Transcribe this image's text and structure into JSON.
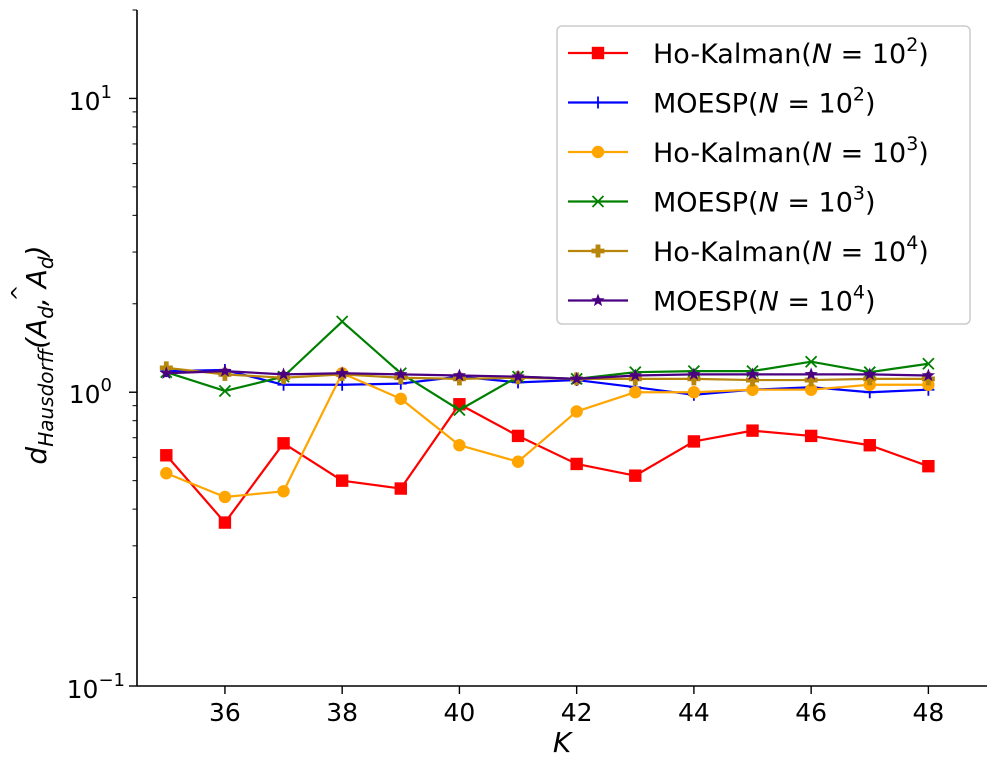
{
  "chart_data": {
    "type": "line",
    "title": "",
    "xlabel": "K",
    "ylabel": "d_Hausdorff(A_d, Â_d)",
    "ylabel_main": "d",
    "ylabel_sub": "Hausdorff",
    "ylabel_args": "(A",
    "ylabel_args_sub": "d",
    "ylabel_args2": ", A",
    "ylabel_args2_sub": "d",
    "ylabel_args_close": ")",
    "ylabel_hat": "^",
    "yscale": "log",
    "xlim": [
      34.5,
      49.0
    ],
    "ylim": [
      0.1,
      20.0
    ],
    "x_ticks": [
      36,
      38,
      40,
      42,
      44,
      46,
      48
    ],
    "x_tick_labels": [
      "36",
      "38",
      "40",
      "42",
      "44",
      "46",
      "48"
    ],
    "y_ticks": [
      {
        "value": 0.1,
        "base": "10",
        "exp": "−1"
      },
      {
        "value": 1.0,
        "base": "10",
        "exp": "0"
      },
      {
        "value": 10.0,
        "base": "10",
        "exp": "1"
      }
    ],
    "y_tick_label_1": "10",
    "y_tick_label_1_exp": "1",
    "y_tick_label_0": "10",
    "y_tick_label_0_exp": "0",
    "y_tick_label_m1": "10",
    "y_tick_label_m1_exp": "−1",
    "x": [
      35,
      36,
      37,
      38,
      39,
      40,
      41,
      42,
      43,
      44,
      45,
      46,
      47,
      48
    ],
    "legend_position": "top-right",
    "series": [
      {
        "name": "Ho-Kalman(N = 10²)",
        "label_main": "Ho-Kalman(",
        "label_N": "N",
        "label_eq": " = 10",
        "label_exp": "2",
        "label_close": ")",
        "color": "#ff0000",
        "marker": "square",
        "values": [
          0.61,
          0.36,
          0.67,
          0.5,
          0.47,
          0.91,
          0.71,
          0.57,
          0.52,
          0.68,
          0.74,
          0.71,
          0.66,
          0.56
        ]
      },
      {
        "name": "MOESP(N = 10²)",
        "label_main": "MOESP(",
        "label_N": "N",
        "label_eq": " = 10",
        "label_exp": "2",
        "label_close": ")",
        "color": "#0000ff",
        "marker": "plus",
        "values": [
          1.18,
          1.19,
          1.06,
          1.06,
          1.07,
          1.13,
          1.08,
          1.1,
          1.04,
          0.98,
          1.02,
          1.04,
          1.0,
          1.02
        ]
      },
      {
        "name": "Ho-Kalman(N = 10³)",
        "label_main": "Ho-Kalman(",
        "label_N": "N",
        "label_eq": " = 10",
        "label_exp": "3",
        "label_close": ")",
        "color": "#ffa500",
        "marker": "circle",
        "values": [
          0.53,
          0.44,
          0.46,
          1.16,
          0.95,
          0.66,
          0.58,
          0.86,
          1.0,
          1.0,
          1.02,
          1.02,
          1.06,
          1.06
        ]
      },
      {
        "name": "MOESP(N = 10³)",
        "label_main": "MOESP(",
        "label_N": "N",
        "label_eq": " = 10",
        "label_exp": "3",
        "label_close": ")",
        "color": "#008000",
        "marker": "x",
        "values": [
          1.17,
          1.01,
          1.13,
          1.74,
          1.16,
          0.87,
          1.13,
          1.11,
          1.17,
          1.18,
          1.18,
          1.27,
          1.17,
          1.25
        ]
      },
      {
        "name": "Ho-Kalman(N = 10⁴)",
        "label_main": "Ho-Kalman(",
        "label_N": "N",
        "label_eq": " = 10",
        "label_exp": "4",
        "label_close": ")",
        "color": "#b8860b",
        "marker": "pluscross",
        "values": [
          1.21,
          1.15,
          1.12,
          1.15,
          1.12,
          1.11,
          1.12,
          1.11,
          1.11,
          1.11,
          1.1,
          1.1,
          1.11,
          1.11
        ]
      },
      {
        "name": "MOESP(N = 10⁴)",
        "label_main": "MOESP(",
        "label_N": "N",
        "label_eq": " = 10",
        "label_exp": "4",
        "label_close": ")",
        "color": "#4b0082",
        "marker": "star",
        "values": [
          1.16,
          1.18,
          1.15,
          1.16,
          1.15,
          1.14,
          1.13,
          1.11,
          1.14,
          1.15,
          1.15,
          1.15,
          1.15,
          1.14
        ]
      }
    ]
  }
}
